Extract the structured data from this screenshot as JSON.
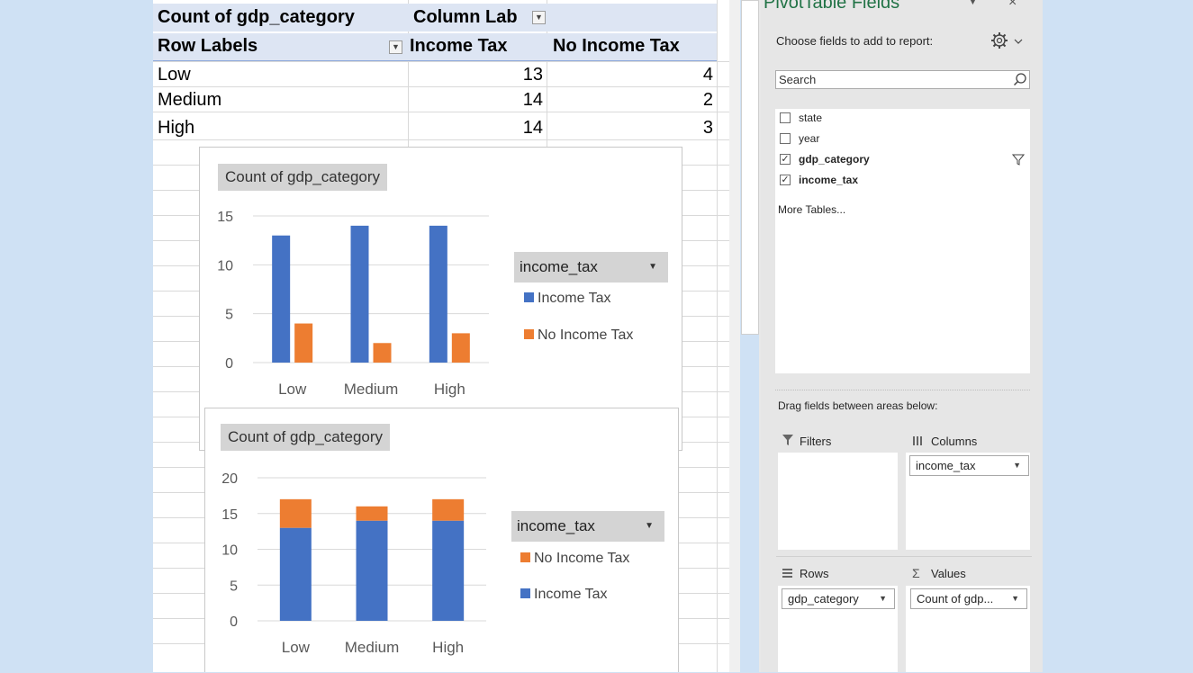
{
  "pivot_table": {
    "header_count": "Count of gdp_category",
    "header_column_labels": "Column Lab",
    "header_row_labels": "Row Labels",
    "col_income_tax": "Income Tax",
    "col_no_income_tax": "No Income Tax",
    "rows": [
      {
        "label": "Low",
        "income_tax": "13",
        "no_income_tax": "4"
      },
      {
        "label": "Medium",
        "income_tax": "14",
        "no_income_tax": "2"
      },
      {
        "label": "High",
        "income_tax": "14",
        "no_income_tax": "3"
      }
    ]
  },
  "chart_data": [
    {
      "type": "bar",
      "title": "Count of gdp_category",
      "categories": [
        "Low",
        "Medium",
        "High"
      ],
      "series": [
        {
          "name": "Income Tax",
          "values": [
            13,
            14,
            14
          ],
          "color": "#4472c4"
        },
        {
          "name": "No Income Tax",
          "values": [
            4,
            2,
            3
          ],
          "color": "#ed7d31"
        }
      ],
      "yticks": [
        "0",
        "5",
        "10",
        "15"
      ],
      "ylim": [
        0,
        15
      ],
      "legend_title": "income_tax",
      "legend_labels": [
        "Income Tax",
        "No Income Tax"
      ],
      "legend_position": "right",
      "grid": true
    },
    {
      "type": "bar",
      "stacked": true,
      "title": "Count of gdp_category",
      "categories": [
        "Low",
        "Medium",
        "High"
      ],
      "series": [
        {
          "name": "Income Tax",
          "values": [
            13,
            14,
            14
          ],
          "color": "#4472c4"
        },
        {
          "name": "No Income Tax",
          "values": [
            4,
            2,
            3
          ],
          "color": "#ed7d31"
        }
      ],
      "yticks": [
        "0",
        "5",
        "10",
        "15",
        "20"
      ],
      "ylim": [
        0,
        20
      ],
      "legend_title": "income_tax",
      "legend_labels": [
        "No Income Tax",
        "Income Tax"
      ],
      "legend_position": "right",
      "grid": true
    }
  ],
  "pane": {
    "title": "PivotTable Fields",
    "choose_label": "Choose fields to add to report:",
    "search_placeholder": "Search",
    "fields": [
      {
        "name": "state",
        "checked": false,
        "check_glyph": ""
      },
      {
        "name": "year",
        "checked": false,
        "check_glyph": ""
      },
      {
        "name": "gdp_category",
        "checked": true,
        "check_glyph": "✓"
      },
      {
        "name": "income_tax",
        "checked": true,
        "check_glyph": "✓"
      }
    ],
    "more_tables": "More Tables...",
    "drag_label": "Drag fields between areas below:",
    "filters_label": "Filters",
    "columns_label": "Columns",
    "rows_label": "Rows",
    "values_label": "Values",
    "columns_field": "income_tax",
    "rows_field": "gdp_category",
    "values_field": "Count of gdp...",
    "icons": {
      "gear": "gear-icon",
      "search": "search-icon",
      "filter": "filter-icon",
      "columns": "columns-icon",
      "rows": "rows-icon",
      "sum": "sigma-icon"
    }
  }
}
